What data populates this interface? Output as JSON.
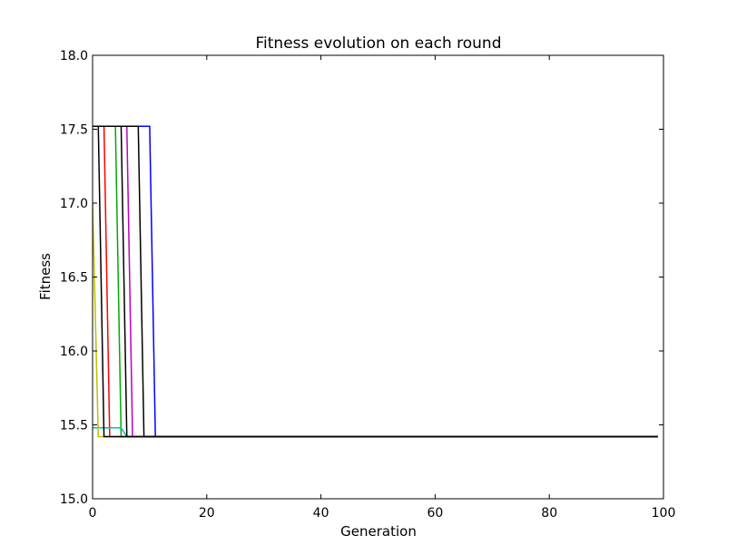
{
  "chart_data": {
    "type": "line",
    "title": "Fitness evolution on each round",
    "xlabel": "Generation",
    "ylabel": "Fitness",
    "xlim": [
      0,
      100
    ],
    "ylim": [
      15.0,
      18.0
    ],
    "xticks": [
      0,
      20,
      40,
      60,
      80,
      100
    ],
    "xtick_labels": [
      "0",
      "20",
      "40",
      "60",
      "80",
      "100"
    ],
    "yticks": [
      15.0,
      15.5,
      16.0,
      16.5,
      17.0,
      17.5,
      18.0
    ],
    "ytick_labels": [
      "15.0",
      "15.5",
      "16.0",
      "16.5",
      "17.0",
      "17.5",
      "18.0"
    ],
    "grid": false,
    "series": [
      {
        "color": "#0000ff",
        "x": [
          0,
          10,
          11,
          99
        ],
        "y": [
          17.52,
          17.52,
          15.42,
          15.42
        ]
      },
      {
        "color": "#00aa00",
        "x": [
          0,
          4,
          5,
          99
        ],
        "y": [
          17.52,
          17.52,
          15.42,
          15.42
        ]
      },
      {
        "color": "#ff0000",
        "x": [
          0,
          2,
          3,
          99
        ],
        "y": [
          17.52,
          17.52,
          15.42,
          15.42
        ]
      },
      {
        "color": "#00bfbf",
        "x": [
          0,
          3,
          5,
          6,
          99
        ],
        "y": [
          15.48,
          15.48,
          15.48,
          15.42,
          15.42
        ]
      },
      {
        "color": "#bf00bf",
        "x": [
          0,
          6,
          7,
          99
        ],
        "y": [
          17.52,
          17.52,
          15.42,
          15.42
        ]
      },
      {
        "color": "#bfbf00",
        "x": [
          0,
          1,
          99
        ],
        "y": [
          17.0,
          15.42,
          15.42
        ]
      },
      {
        "color": "#000000",
        "x": [
          0,
          1,
          2,
          99
        ],
        "y": [
          17.52,
          17.52,
          15.42,
          15.42
        ]
      },
      {
        "color": "#000000",
        "x": [
          0,
          8,
          9,
          99
        ],
        "y": [
          17.52,
          17.52,
          15.42,
          15.42
        ]
      },
      {
        "color": "#000000",
        "x": [
          0,
          5,
          6,
          99
        ],
        "y": [
          17.52,
          17.52,
          15.42,
          15.42
        ]
      }
    ]
  }
}
